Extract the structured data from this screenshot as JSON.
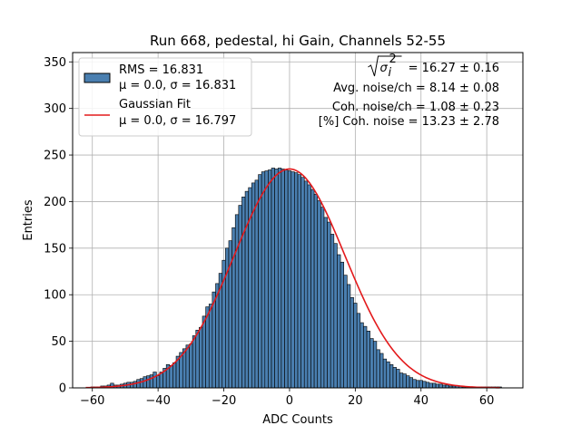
{
  "chart_data": {
    "type": "bar",
    "title": "Run 668, pedestal, hi Gain, Channels 52-55",
    "xlabel": "ADC Counts",
    "ylabel": "Entries",
    "xlim": [
      -66,
      71
    ],
    "ylim": [
      0,
      360
    ],
    "xticks": [
      -60,
      -40,
      -20,
      0,
      20,
      40,
      60
    ],
    "yticks": [
      0,
      50,
      100,
      150,
      200,
      250,
      300,
      350
    ],
    "grid": true,
    "legend_position": "top-left",
    "colors": {
      "histogram": "#4a7fb0",
      "edge": "#000000",
      "fit": "#e31a1c"
    },
    "histogram": {
      "name": "RMS = 16.831",
      "stats": "μ = 0.0, σ = 16.831",
      "bin_width": 1,
      "x": [
        -60,
        -59,
        -58,
        -57,
        -56,
        -55,
        -54,
        -53,
        -52,
        -51,
        -50,
        -49,
        -48,
        -47,
        -46,
        -45,
        -44,
        -43,
        -42,
        -41,
        -40,
        -39,
        -38,
        -37,
        -36,
        -35,
        -34,
        -33,
        -32,
        -31,
        -30,
        -29,
        -28,
        -27,
        -26,
        -25,
        -24,
        -23,
        -22,
        -21,
        -20,
        -19,
        -18,
        -17,
        -16,
        -15,
        -14,
        -13,
        -12,
        -11,
        -10,
        -9,
        -8,
        -7,
        -6,
        -5,
        -4,
        -3,
        -2,
        -1,
        0,
        1,
        2,
        3,
        4,
        5,
        6,
        7,
        8,
        9,
        10,
        11,
        12,
        13,
        14,
        15,
        16,
        17,
        18,
        19,
        20,
        21,
        22,
        23,
        24,
        25,
        26,
        27,
        28,
        29,
        30,
        31,
        32,
        33,
        34,
        35,
        36,
        37,
        38,
        39,
        40,
        41,
        42,
        43,
        44,
        45,
        46,
        47,
        48,
        49,
        50,
        51,
        52,
        53,
        54,
        55,
        56,
        57,
        58,
        59,
        60,
        61,
        62,
        63,
        64
      ],
      "values": [
        1,
        1,
        1,
        2,
        2,
        3,
        5,
        3,
        3,
        4,
        5,
        6,
        6,
        7,
        9,
        10,
        12,
        13,
        14,
        17,
        13,
        17,
        21,
        25,
        24,
        27,
        34,
        38,
        42,
        46,
        47,
        56,
        62,
        65,
        77,
        87,
        90,
        103,
        112,
        123,
        137,
        150,
        158,
        172,
        186,
        196,
        205,
        211,
        215,
        220,
        223,
        229,
        232,
        233,
        234,
        236,
        235,
        236,
        235,
        234,
        233,
        232,
        231,
        229,
        226,
        222,
        218,
        213,
        208,
        201,
        194,
        183,
        178,
        165,
        155,
        143,
        135,
        121,
        111,
        97,
        91,
        80,
        70,
        66,
        61,
        53,
        50,
        41,
        37,
        31,
        28,
        25,
        22,
        20,
        16,
        15,
        13,
        11,
        9,
        8,
        8,
        7,
        6,
        5,
        5,
        4,
        4,
        3,
        3,
        2,
        2,
        2,
        2,
        1,
        1,
        1,
        1,
        1,
        1,
        1,
        1,
        1,
        1,
        1,
        1
      ]
    },
    "fit": {
      "name": "Gaussian Fit",
      "stats": "μ = 0.0, σ = 16.797",
      "mu": 0.0,
      "sigma": 16.797,
      "amplitude": 235,
      "x_range": [
        -62,
        64
      ]
    },
    "annotations": [
      {
        "prefix": "",
        "symbol": "σ",
        "sup": "2",
        "sub": "i",
        "suffix": " = 16.27 ± 0.16"
      },
      {
        "text": "Avg. noise/ch = 8.14 ± 0.08"
      },
      {
        "text": "Coh. noise/ch = 1.08 ± 0.23"
      },
      {
        "text": "[%] Coh. noise = 13.23 ± 2.78"
      }
    ]
  }
}
